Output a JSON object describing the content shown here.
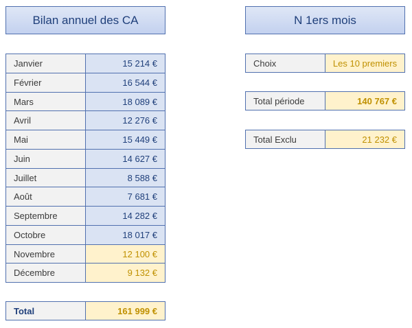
{
  "headers": {
    "left": "Bilan annuel des CA",
    "right": "N 1ers mois"
  },
  "months": [
    {
      "label": "Janvier",
      "value": "15 214 €",
      "excluded": false
    },
    {
      "label": "Février",
      "value": "16 544 €",
      "excluded": false
    },
    {
      "label": "Mars",
      "value": "18 089 €",
      "excluded": false
    },
    {
      "label": "Avril",
      "value": "12 276 €",
      "excluded": false
    },
    {
      "label": "Mai",
      "value": "15 449 €",
      "excluded": false
    },
    {
      "label": "Juin",
      "value": "14 627 €",
      "excluded": false
    },
    {
      "label": "Juillet",
      "value": "8 588 €",
      "excluded": false
    },
    {
      "label": "Août",
      "value": "7 681 €",
      "excluded": false
    },
    {
      "label": "Septembre",
      "value": "14 282 €",
      "excluded": false
    },
    {
      "label": "Octobre",
      "value": "18 017 €",
      "excluded": false
    },
    {
      "label": "Novembre",
      "value": "12 100 €",
      "excluded": true
    },
    {
      "label": "Décembre",
      "value": "9 132 €",
      "excluded": true
    }
  ],
  "total": {
    "label": "Total",
    "value": "161 999 €"
  },
  "choice": {
    "label": "Choix",
    "value": "Les 10 premiers"
  },
  "period_total": {
    "label": "Total période",
    "value": "140 767 €"
  },
  "excluded_total": {
    "label": "Total Exclu",
    "value": "21 232 €"
  },
  "colors": {
    "border": "#4f6fae",
    "blue_fill": "#dae3f3",
    "yellow_fill": "#fff2cc",
    "yellow_text": "#bf9000",
    "blue_text": "#1f3f7a"
  }
}
